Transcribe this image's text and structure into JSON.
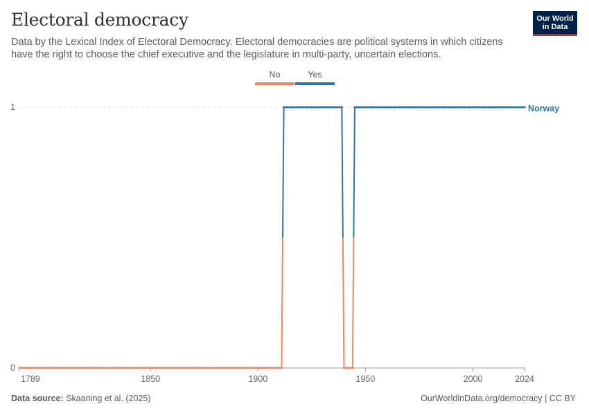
{
  "header": {
    "title": "Electoral democracy",
    "subtitle": "Data by the Lexical Index of Electoral Democracy. Electoral democracies are political systems in which citizens have the right to choose the chief executive and the legislature in multi-party, uncertain elections."
  },
  "logo": {
    "line1": "Our World",
    "line2": "in Data"
  },
  "footer": {
    "source_label": "Data source:",
    "source_text": "Skaaning et al. (2025)",
    "credit": "OurWorldinData.org/democracy | CC BY"
  },
  "colors": {
    "no": "#e88a64",
    "yes": "#2d74ac",
    "grid": "#dddddd",
    "axis": "#999999"
  },
  "chart_data": {
    "type": "line",
    "title": "Electoral democracy",
    "xlim": [
      1789,
      2024
    ],
    "ylim": [
      0,
      1
    ],
    "x_ticks": [
      1789,
      1850,
      1900,
      1950,
      2000,
      2024
    ],
    "y_ticks": [
      0,
      1
    ],
    "legend": {
      "placement": "top-center",
      "entries": [
        {
          "label": "No",
          "value": 0
        },
        {
          "label": "Yes",
          "value": 1
        }
      ]
    },
    "series": [
      {
        "name": "Norway",
        "segments": [
          {
            "from": 1789,
            "to": 1911,
            "value": 0
          },
          {
            "from": 1912,
            "to": 1939,
            "value": 1
          },
          {
            "from": 1940,
            "to": 1944,
            "value": 0
          },
          {
            "from": 1945,
            "to": 2024,
            "value": 1
          }
        ]
      }
    ]
  }
}
